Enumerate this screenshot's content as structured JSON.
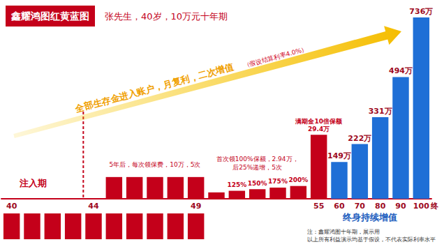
{
  "chart_data": [
    {
      "type": "bar",
      "title": "鑫耀鸿图红黄蓝图",
      "subtitle": "张先生，40岁，10万元十年期",
      "annotations": [
        "全部生存金进入账户，月复利，二次增值",
        "（假设结算利率4.0%）",
        "5年后，每次领保费，10万，5次",
        "首次领100%保额，2.94万，\n后25%递增，5次",
        "注入期",
        "终身持续增值",
        "终",
        "注：鑫耀鸿图十年期，展示用\n以上所有利益演示均基于假设，不代表实际利率水平"
      ],
      "categories": [
        "40",
        null,
        null,
        null,
        "44",
        null,
        null,
        null,
        null,
        "49",
        null,
        null,
        null,
        null,
        null,
        "55",
        "60",
        "70",
        "80",
        "90",
        "100"
      ],
      "series": [
        {
          "color": "#c4001a",
          "values": [
            null,
            null,
            null,
            null,
            null,
            10,
            10,
            10,
            10,
            10,
            2.94,
            3.675,
            4.41,
            5.145,
            5.88,
            29.4,
            null,
            null,
            null,
            null,
            null
          ],
          "notes": [
            null,
            null,
            null,
            null,
            null,
            null,
            null,
            null,
            null,
            null,
            null,
            "125%",
            "150%",
            "175%",
            "200%",
            "满期金10倍保额\n29.4万",
            null,
            null,
            null,
            null,
            null
          ]
        },
        {
          "color": "#1f6fd6",
          "axis": "y2",
          "data_labels": true,
          "values": [
            null,
            null,
            null,
            null,
            null,
            null,
            null,
            null,
            null,
            null,
            null,
            null,
            null,
            null,
            null,
            null,
            149,
            222,
            331,
            494,
            736
          ],
          "value_labels": [
            null,
            null,
            null,
            null,
            null,
            null,
            null,
            null,
            null,
            null,
            null,
            null,
            null,
            null,
            null,
            null,
            "149万",
            "222万",
            "331万",
            "494万",
            "736万"
          ]
        }
      ],
      "ylim": [
        0,
        85
      ],
      "yticks": [
        0,
        85
      ],
      "y2lim": [
        0,
        750
      ],
      "y2ticks": [
        0,
        750
      ],
      "tick_labels": "x",
      "grid": false
    },
    {
      "type": "bar",
      "categories": [
        "40",
        null,
        null,
        null,
        "44",
        null,
        null,
        null,
        null,
        "49",
        null,
        null,
        null,
        null,
        null,
        "55",
        "60",
        "70",
        "80",
        "90",
        "100"
      ],
      "values": [
        10,
        10,
        10,
        10,
        10,
        10,
        10,
        10,
        10,
        10,
        null,
        null,
        null,
        null,
        null,
        null,
        null,
        null,
        null,
        null,
        null
      ],
      "color": "#c4001a",
      "ylim": [
        0,
        10
      ],
      "yticks": [
        0,
        10
      ],
      "tick_labels": false,
      "grid": false
    }
  ]
}
